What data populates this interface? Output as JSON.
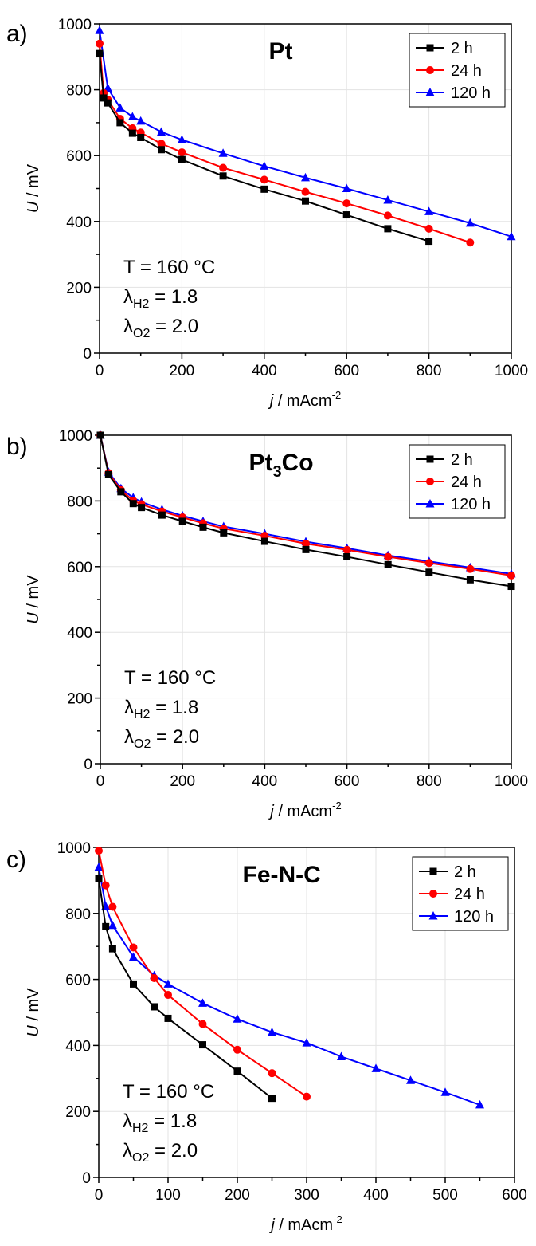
{
  "chart_data": [
    {
      "type": "line",
      "panel_label": "a)",
      "title": "Pt",
      "title_main": "Pt",
      "title_sub": "",
      "title_tail": "",
      "xlabel_italic": "j",
      "xlabel_rest": " / mAcm",
      "xlabel_sup": "-2",
      "ylabel_italic": "U",
      "ylabel_rest": " / mV",
      "xlim": [
        0,
        1000
      ],
      "ylim": [
        0,
        1000
      ],
      "xticks": [
        "0",
        "200",
        "400",
        "600",
        "800",
        "1000"
      ],
      "yticks": [
        "0",
        "200",
        "400",
        "600",
        "800",
        "1000"
      ],
      "grid": true,
      "legend_position": "top-right",
      "annotation": {
        "line1": "T = 160 °C",
        "line2_main": "λ",
        "line2_sub": "H2",
        "line2_rest": " = 1.8",
        "line3_main": "λ",
        "line3_sub": "O2",
        "line3_rest": " = 2.0"
      },
      "series": [
        {
          "name": "2 h",
          "color": "#000000",
          "marker": "square",
          "x": [
            0,
            10,
            20,
            50,
            80,
            100,
            150,
            200,
            300,
            400,
            500,
            600,
            700,
            800
          ],
          "y": [
            910,
            775,
            760,
            700,
            668,
            655,
            618,
            588,
            538,
            498,
            462,
            420,
            378,
            340
          ]
        },
        {
          "name": "24 h",
          "color": "#ff0000",
          "marker": "circle",
          "x": [
            0,
            10,
            20,
            50,
            80,
            100,
            150,
            200,
            300,
            400,
            500,
            600,
            700,
            800,
            900
          ],
          "y": [
            940,
            790,
            770,
            712,
            683,
            670,
            636,
            610,
            563,
            527,
            490,
            455,
            418,
            378,
            336
          ]
        },
        {
          "name": "120 h",
          "color": "#0000ff",
          "marker": "triangle",
          "x": [
            0,
            20,
            50,
            80,
            100,
            150,
            200,
            300,
            400,
            500,
            600,
            700,
            800,
            900,
            1000
          ],
          "y": [
            980,
            805,
            745,
            718,
            705,
            672,
            648,
            607,
            568,
            533,
            500,
            465,
            430,
            395,
            354
          ]
        }
      ]
    },
    {
      "type": "line",
      "panel_label": "b)",
      "title": "Pt3Co",
      "title_main": "Pt",
      "title_sub": "3",
      "title_tail": "Co",
      "xlabel_italic": "j",
      "xlabel_rest": " / mAcm",
      "xlabel_sup": "-2",
      "ylabel_italic": "U",
      "ylabel_rest": " / mV",
      "xlim": [
        0,
        1000
      ],
      "ylim": [
        0,
        1000
      ],
      "xticks": [
        "0",
        "200",
        "400",
        "600",
        "800",
        "1000"
      ],
      "yticks": [
        "0",
        "200",
        "400",
        "600",
        "800",
        "1000"
      ],
      "grid": true,
      "legend_position": "top-right",
      "annotation": {
        "line1": "T = 160 °C",
        "line2_main": "λ",
        "line2_sub": "H2",
        "line2_rest": " = 1.8",
        "line3_main": "λ",
        "line3_sub": "O2",
        "line3_rest": " = 2.0"
      },
      "series": [
        {
          "name": "2 h",
          "color": "#000000",
          "marker": "square",
          "x": [
            0,
            20,
            50,
            80,
            100,
            150,
            200,
            250,
            300,
            400,
            500,
            600,
            700,
            800,
            900,
            1000
          ],
          "y": [
            1000,
            880,
            828,
            792,
            780,
            757,
            738,
            720,
            703,
            677,
            652,
            630,
            606,
            583,
            560,
            540
          ]
        },
        {
          "name": "24 h",
          "color": "#ff0000",
          "marker": "circle",
          "x": [
            0,
            20,
            50,
            80,
            100,
            150,
            200,
            250,
            300,
            400,
            500,
            600,
            700,
            800,
            900,
            1000
          ],
          "y": [
            1000,
            885,
            833,
            801,
            790,
            768,
            750,
            732,
            716,
            694,
            670,
            651,
            630,
            611,
            593,
            573
          ]
        },
        {
          "name": "120 h",
          "color": "#0000ff",
          "marker": "triangle",
          "x": [
            0,
            20,
            50,
            80,
            100,
            150,
            200,
            250,
            300,
            400,
            500,
            600,
            700,
            800,
            900,
            1000
          ],
          "y": [
            1000,
            888,
            838,
            810,
            797,
            774,
            755,
            738,
            722,
            700,
            676,
            656,
            634,
            616,
            597,
            578
          ]
        }
      ]
    },
    {
      "type": "line",
      "panel_label": "c)",
      "title": "Fe-N-C",
      "title_main": "Fe-N-C",
      "title_sub": "",
      "title_tail": "",
      "xlabel_italic": "j",
      "xlabel_rest": " / mAcm",
      "xlabel_sup": "-2",
      "ylabel_italic": "U",
      "ylabel_rest": " / mV",
      "xlim": [
        0,
        600
      ],
      "ylim": [
        0,
        1000
      ],
      "xticks": [
        "0",
        "100",
        "200",
        "300",
        "400",
        "500",
        "600"
      ],
      "yticks": [
        "0",
        "200",
        "400",
        "600",
        "800",
        "1000"
      ],
      "grid": true,
      "legend_position": "top-right",
      "annotation": {
        "line1": "T = 160 °C",
        "line2_main": "λ",
        "line2_sub": "H2",
        "line2_rest": " = 1.8",
        "line3_main": "λ",
        "line3_sub": "O2",
        "line3_rest": " = 2.0"
      },
      "series": [
        {
          "name": "2 h",
          "color": "#000000",
          "marker": "square",
          "x": [
            0,
            10,
            20,
            50,
            80,
            100,
            150,
            200,
            250
          ],
          "y": [
            905,
            760,
            693,
            586,
            517,
            482,
            402,
            322,
            240
          ]
        },
        {
          "name": "24 h",
          "color": "#ff0000",
          "marker": "circle",
          "x": [
            0,
            10,
            20,
            50,
            80,
            100,
            150,
            200,
            250,
            300
          ],
          "y": [
            990,
            885,
            820,
            697,
            604,
            553,
            465,
            387,
            316,
            245
          ]
        },
        {
          "name": "120 h",
          "color": "#0000ff",
          "marker": "triangle",
          "x": [
            0,
            10,
            20,
            50,
            80,
            100,
            150,
            200,
            250,
            300,
            350,
            400,
            450,
            500,
            550
          ],
          "y": [
            940,
            822,
            764,
            668,
            612,
            586,
            528,
            480,
            440,
            408,
            366,
            330,
            294,
            258,
            220
          ]
        }
      ]
    }
  ]
}
